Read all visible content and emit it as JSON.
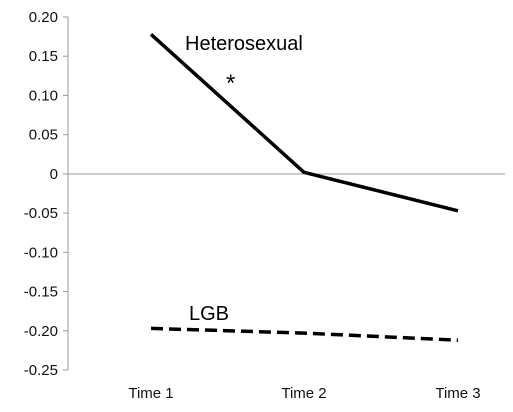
{
  "chart_data": {
    "type": "line",
    "title": "",
    "xlabel": "",
    "ylabel": "",
    "categories": [
      "Time 1",
      "Time 2",
      "Time 3"
    ],
    "ylim": [
      -0.25,
      0.2
    ],
    "yticks": [
      "0.20",
      "0.15",
      "0.10",
      "0.05",
      "0",
      "-0.05",
      "-0.10",
      "-0.15",
      "-0.20",
      "-0.25"
    ],
    "grid": false,
    "series": [
      {
        "name": "Heterosexual",
        "values": [
          0.178,
          0.002,
          -0.047
        ],
        "style": "solid",
        "color": "#000000"
      },
      {
        "name": "LGB",
        "values": [
          -0.197,
          -0.203,
          -0.212
        ],
        "style": "dashed",
        "color": "#000000"
      }
    ],
    "annotations": [
      {
        "text": "*"
      }
    ]
  }
}
